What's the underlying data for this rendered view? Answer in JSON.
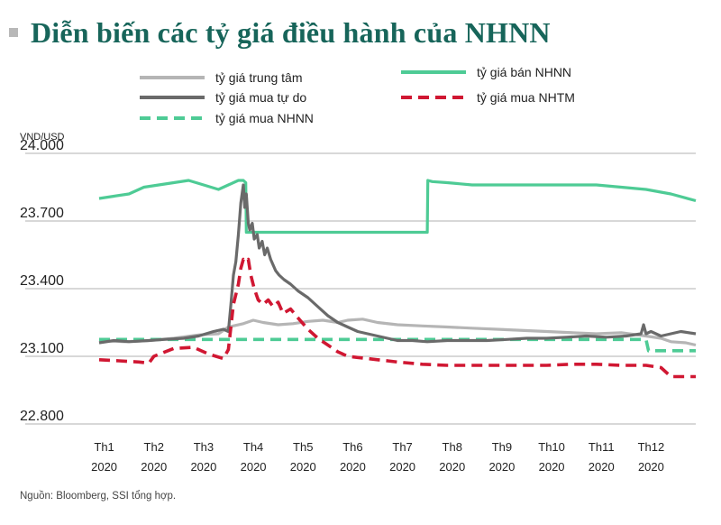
{
  "header": {
    "title": "Diễn biến các tỷ giá điều hành của NHNN"
  },
  "footer": {
    "source": "Nguồn: Bloomberg, SSI tổng hợp."
  },
  "colors": {
    "trung_tam": "#b5b5b5",
    "mua_tu_do": "#6a6a6a",
    "nhnn": "#4ecb95",
    "nhtm": "#d01732",
    "title": "#17655a"
  },
  "chart_data": {
    "type": "line",
    "ylabel": "VND/USD",
    "ylim": [
      22800,
      24000
    ],
    "yticks": [
      22800,
      23100,
      23400,
      23700,
      24000
    ],
    "ytick_labels": [
      "22.800",
      "23.100",
      "23.400",
      "23.700",
      "24.000"
    ],
    "xlim": [
      0,
      12
    ],
    "x_tick_labels": [
      [
        "Th1",
        "2020"
      ],
      [
        "Th2",
        "2020"
      ],
      [
        "Th3",
        "2020"
      ],
      [
        "Th4",
        "2020"
      ],
      [
        "Th5",
        "2020"
      ],
      [
        "Th6",
        "2020"
      ],
      [
        "Th7",
        "2020"
      ],
      [
        "Th8",
        "2020"
      ],
      [
        "Th9",
        "2020"
      ],
      [
        "Th10",
        "2020"
      ],
      [
        "Th11",
        "2020"
      ],
      [
        "Th12",
        "2020"
      ]
    ],
    "series": [
      {
        "name": "tỷ giá trung tâm",
        "color": "#b5b5b5",
        "style": "solid",
        "x": [
          0,
          0.5,
          1.0,
          1.5,
          2.0,
          2.4,
          2.6,
          2.9,
          3.1,
          3.3,
          3.6,
          3.9,
          4.2,
          4.5,
          4.8,
          5.0,
          5.3,
          5.6,
          6.0,
          6.5,
          7.0,
          7.5,
          8.0,
          9.0,
          10.0,
          10.5,
          11.0,
          11.3,
          11.5,
          11.8,
          12
        ],
        "values": [
          23170,
          23165,
          23170,
          23180,
          23195,
          23200,
          23230,
          23245,
          23260,
          23250,
          23240,
          23245,
          23255,
          23260,
          23250,
          23260,
          23265,
          23250,
          23240,
          23235,
          23230,
          23225,
          23220,
          23210,
          23200,
          23205,
          23190,
          23180,
          23165,
          23160,
          23150
        ]
      },
      {
        "name": "tỷ giá mua tự do",
        "color": "#6a6a6a",
        "style": "solid",
        "x": [
          0,
          0.3,
          0.6,
          1.0,
          1.3,
          1.7,
          2.0,
          2.3,
          2.5,
          2.6,
          2.65,
          2.7,
          2.75,
          2.8,
          2.85,
          2.9,
          2.93,
          2.96,
          3.0,
          3.03,
          3.08,
          3.12,
          3.18,
          3.22,
          3.28,
          3.33,
          3.38,
          3.45,
          3.55,
          3.62,
          3.72,
          3.85,
          4.0,
          4.2,
          4.4,
          4.6,
          4.8,
          5.0,
          5.2,
          5.4,
          5.6,
          5.8,
          6.0,
          6.3,
          6.6,
          7.0,
          7.4,
          7.8,
          8.2,
          8.6,
          9.0,
          9.4,
          9.8,
          10.2,
          10.6,
          10.9,
          10.95,
          11.0,
          11.1,
          11.3,
          11.5,
          11.7,
          12
        ],
        "values": [
          23160,
          23170,
          23165,
          23170,
          23175,
          23180,
          23190,
          23210,
          23220,
          23210,
          23330,
          23460,
          23520,
          23640,
          23780,
          23860,
          23760,
          23820,
          23690,
          23660,
          23690,
          23620,
          23640,
          23580,
          23610,
          23550,
          23580,
          23530,
          23480,
          23460,
          23440,
          23420,
          23390,
          23360,
          23320,
          23280,
          23250,
          23230,
          23210,
          23200,
          23190,
          23180,
          23170,
          23170,
          23165,
          23170,
          23170,
          23170,
          23175,
          23180,
          23180,
          23185,
          23190,
          23185,
          23190,
          23200,
          23240,
          23200,
          23210,
          23190,
          23200,
          23210,
          23200
        ]
      },
      {
        "name": "tỷ giá mua NHNN",
        "color": "#4ecb95",
        "style": "dashed",
        "x": [
          0,
          11.0,
          11.05,
          12
        ],
        "values": [
          23175,
          23175,
          23125,
          23125
        ]
      },
      {
        "name": "tỷ giá bán NHNN",
        "color": "#4ecb95",
        "style": "solid",
        "x": [
          0,
          0.3,
          0.6,
          0.9,
          1.2,
          1.5,
          1.8,
          2.1,
          2.4,
          2.6,
          2.8,
          2.9,
          2.95,
          2.96,
          6.6,
          6.61,
          6.7,
          7.0,
          7.5,
          8.0,
          8.5,
          9.0,
          9.5,
          10.0,
          10.5,
          11.0,
          11.5,
          12
        ],
        "values": [
          23800,
          23810,
          23820,
          23850,
          23860,
          23870,
          23880,
          23860,
          23840,
          23860,
          23880,
          23880,
          23870,
          23650,
          23650,
          23880,
          23875,
          23870,
          23860,
          23860,
          23860,
          23860,
          23860,
          23860,
          23850,
          23840,
          23820,
          23790
        ]
      },
      {
        "name": "tỷ giá mua NHTM",
        "color": "#d01732",
        "style": "dashed",
        "x": [
          0,
          0.4,
          0.8,
          1.0,
          1.1,
          1.5,
          1.9,
          2.2,
          2.5,
          2.6,
          2.65,
          2.7,
          2.8,
          2.85,
          2.9,
          2.95,
          3.0,
          3.05,
          3.12,
          3.2,
          3.3,
          3.4,
          3.5,
          3.6,
          3.7,
          3.85,
          4.0,
          4.2,
          4.4,
          4.6,
          4.8,
          5.0,
          5.2,
          5.4,
          5.6,
          5.8,
          6.0,
          6.5,
          7.0,
          7.5,
          8.0,
          8.5,
          9.0,
          9.5,
          10.0,
          10.5,
          11.0,
          11.3,
          11.5,
          12
        ],
        "values": [
          23085,
          23080,
          23075,
          23070,
          23100,
          23135,
          23140,
          23110,
          23090,
          23130,
          23230,
          23330,
          23420,
          23490,
          23530,
          23520,
          23530,
          23460,
          23400,
          23350,
          23330,
          23350,
          23320,
          23340,
          23290,
          23310,
          23270,
          23220,
          23180,
          23150,
          23120,
          23100,
          23095,
          23090,
          23085,
          23080,
          23075,
          23065,
          23060,
          23060,
          23060,
          23060,
          23060,
          23065,
          23065,
          23060,
          23060,
          23050,
          23010,
          23010
        ]
      }
    ]
  }
}
